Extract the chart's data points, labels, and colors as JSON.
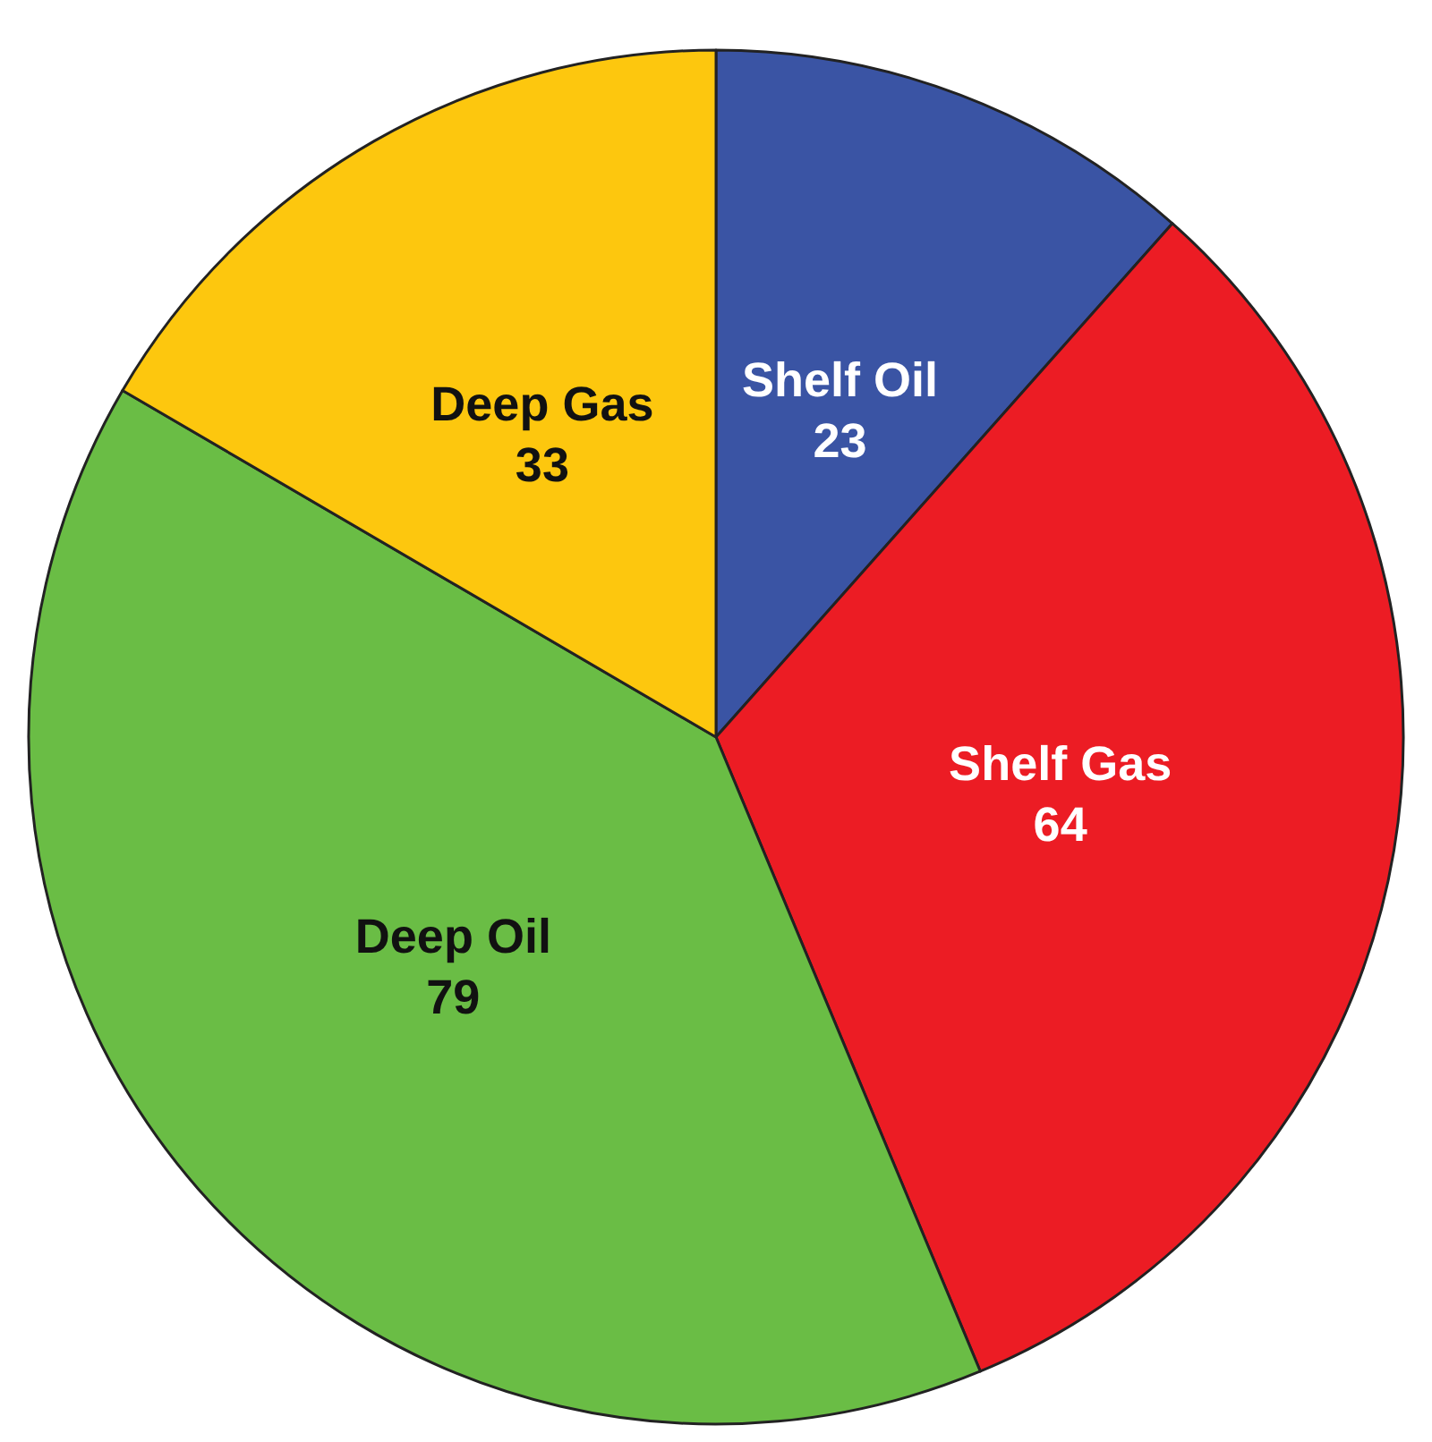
{
  "chart_data": {
    "type": "pie",
    "categories": [
      "Shelf Oil",
      "Shelf Gas",
      "Deep Oil",
      "Deep Gas"
    ],
    "values": [
      23,
      64,
      79,
      33
    ],
    "colors": [
      "#3a54a4",
      "#ec1c24",
      "#6abd45",
      "#fdc70e"
    ],
    "data_labels": true,
    "legend": false
  }
}
